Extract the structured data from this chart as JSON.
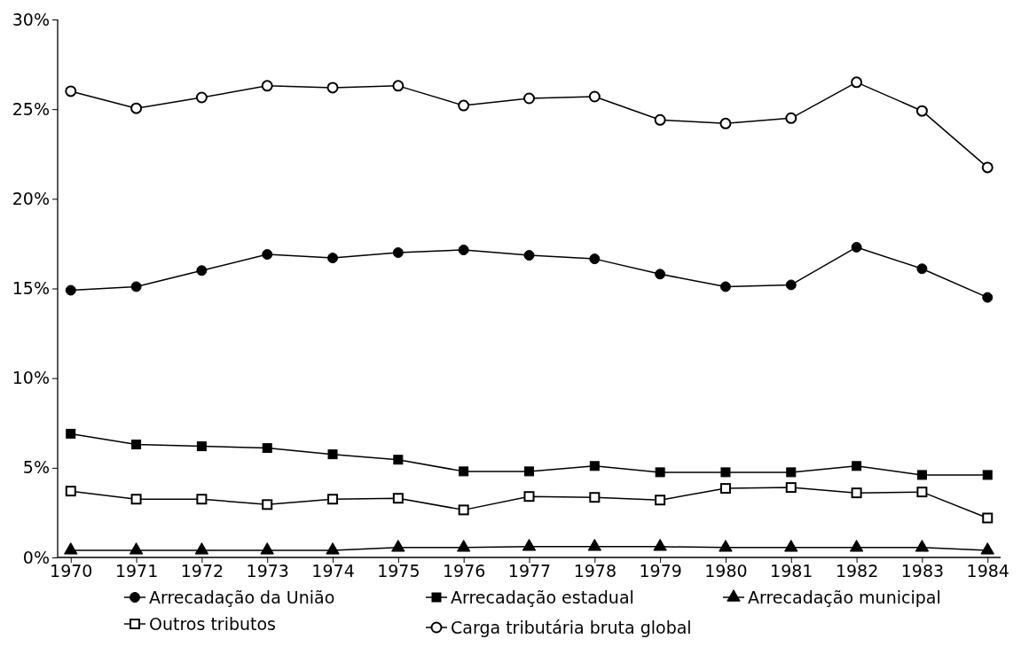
{
  "chart_data": {
    "type": "line",
    "categories": [
      "1970",
      "1971",
      "1972",
      "1973",
      "1974",
      "1975",
      "1976",
      "1977",
      "1978",
      "1979",
      "1980",
      "1981",
      "1982",
      "1983",
      "1984"
    ],
    "ylim": [
      0,
      30
    ],
    "yticks": [
      {
        "value": 0,
        "label": "0%"
      },
      {
        "value": 5,
        "label": "5%"
      },
      {
        "value": 10,
        "label": "10%"
      },
      {
        "value": 15,
        "label": "15%"
      },
      {
        "value": 20,
        "label": "20%"
      },
      {
        "value": 25,
        "label": "25%"
      },
      {
        "value": 30,
        "label": "30%"
      }
    ],
    "grid": false,
    "legend": "bottom",
    "line_style": "solid",
    "series": [
      {
        "name": "Arrecadação da União",
        "color": "#000000",
        "marker": "circle",
        "values": [
          14.9,
          15.1,
          16.0,
          16.9,
          16.7,
          17.0,
          17.15,
          16.85,
          16.65,
          15.8,
          15.1,
          15.2,
          17.3,
          16.1,
          14.5
        ]
      },
      {
        "name": "Arrecadação estadual",
        "color": "#000000",
        "marker": "square",
        "values": [
          6.9,
          6.3,
          6.2,
          6.1,
          5.75,
          5.45,
          4.8,
          4.8,
          5.1,
          4.75,
          4.75,
          4.75,
          5.1,
          4.6,
          4.6
        ]
      },
      {
        "name": "Arrecadação municipal",
        "color": "#000000",
        "marker": "triangle",
        "values": [
          0.4,
          0.4,
          0.4,
          0.4,
          0.4,
          0.55,
          0.55,
          0.6,
          0.6,
          0.6,
          0.55,
          0.55,
          0.55,
          0.55,
          0.4
        ]
      },
      {
        "name": "Outros tributos",
        "color": "#000000",
        "marker": "square",
        "values": [
          3.7,
          3.25,
          3.25,
          2.95,
          3.25,
          3.3,
          2.65,
          3.4,
          3.35,
          3.2,
          3.85,
          3.9,
          3.6,
          3.65,
          2.2
        ]
      },
      {
        "name": "Carga tributária bruta global",
        "color": "#000000",
        "marker": "circle",
        "values": [
          26.0,
          25.05,
          25.65,
          26.3,
          26.2,
          26.3,
          25.2,
          25.6,
          25.7,
          24.4,
          24.2,
          24.5,
          26.5,
          24.9,
          21.75
        ]
      }
    ]
  }
}
